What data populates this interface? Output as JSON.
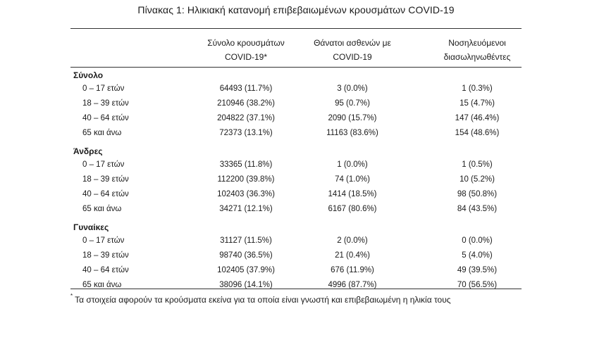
{
  "title": "Πίνακας 1: Ηλικιακή κατανομή επιβεβαιωμένων κρουσμάτων COVID-19",
  "columns": {
    "c1": [
      "Σύνολο κρουσμάτων",
      "COVID-19*"
    ],
    "c2": [
      "Θάνατοι ασθενών με",
      "COVID-19"
    ],
    "c3": [
      "Νοσηλευόμενοι",
      "διασωληνωθέντες"
    ]
  },
  "groups": [
    {
      "name": "Σύνολο",
      "rows": [
        {
          "label": "0 – 17 ετών",
          "cases": "64493 (11.7%)",
          "deaths": "3 (0.0%)",
          "intubated": "1 (0.3%)"
        },
        {
          "label": "18 – 39 ετών",
          "cases": "210946 (38.2%)",
          "deaths": "95 (0.7%)",
          "intubated": "15 (4.7%)"
        },
        {
          "label": "40 – 64 ετών",
          "cases": "204822 (37.1%)",
          "deaths": "2090 (15.7%)",
          "intubated": "147 (46.4%)"
        },
        {
          "label": "65 και άνω",
          "cases": "72373 (13.1%)",
          "deaths": "11163 (83.6%)",
          "intubated": "154 (48.6%)"
        }
      ]
    },
    {
      "name": "Άνδρες",
      "rows": [
        {
          "label": "0 – 17 ετών",
          "cases": "33365 (11.8%)",
          "deaths": "1 (0.0%)",
          "intubated": "1 (0.5%)"
        },
        {
          "label": "18 – 39 ετών",
          "cases": "112200 (39.8%)",
          "deaths": "74 (1.0%)",
          "intubated": "10 (5.2%)"
        },
        {
          "label": "40 – 64 ετών",
          "cases": "102403 (36.3%)",
          "deaths": "1414 (18.5%)",
          "intubated": "98 (50.8%)"
        },
        {
          "label": "65 και άνω",
          "cases": "34271 (12.1%)",
          "deaths": "6167 (80.6%)",
          "intubated": "84 (43.5%)"
        }
      ]
    },
    {
      "name": "Γυναίκες",
      "rows": [
        {
          "label": "0 – 17 ετών",
          "cases": "31127 (11.5%)",
          "deaths": "2 (0.0%)",
          "intubated": "0 (0.0%)"
        },
        {
          "label": "18 – 39 ετών",
          "cases": "98740 (36.5%)",
          "deaths": "21 (0.4%)",
          "intubated": "5 (4.0%)"
        },
        {
          "label": "40 – 64 ετών",
          "cases": "102405 (37.9%)",
          "deaths": "676 (11.9%)",
          "intubated": "49 (39.5%)"
        },
        {
          "label": "65 και άνω",
          "cases": "38096 (14.1%)",
          "deaths": "4996 (87.7%)",
          "intubated": "70 (56.5%)"
        }
      ]
    }
  ],
  "footnote": {
    "mark": "*",
    "text": "Τα στοιχεία αφορούν τα κρούσματα εκείνα για τα οποία είναι γνωστή και επιβεβαιωμένη η ηλικία τους"
  }
}
